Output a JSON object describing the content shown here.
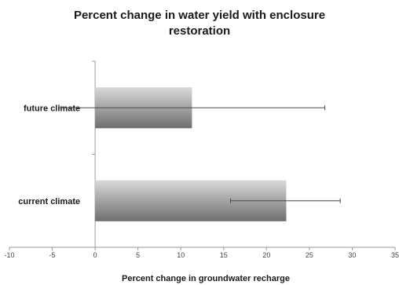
{
  "chart_data": {
    "type": "bar",
    "orientation": "horizontal",
    "title": [
      "Percent change in water yield with enclosure",
      "restoration"
    ],
    "xlabel": "Percent change in groundwater recharge",
    "ylabel": "",
    "categories": [
      "future climate",
      "current climate"
    ],
    "values": [
      11.3,
      22.3
    ],
    "error_low": [
      -4.2,
      15.8
    ],
    "error_high": [
      26.8,
      28.6
    ],
    "xlim": [
      -10,
      35
    ],
    "xticks": [
      -10,
      -5,
      0,
      5,
      10,
      15,
      20,
      25,
      30,
      35
    ],
    "grid": false,
    "legend": "none",
    "colors": {
      "bar_light": "#d9d9d9",
      "bar_dark": "#6e6e6e",
      "axis": "#9a9a9a",
      "error": "#4a4a4a"
    }
  }
}
